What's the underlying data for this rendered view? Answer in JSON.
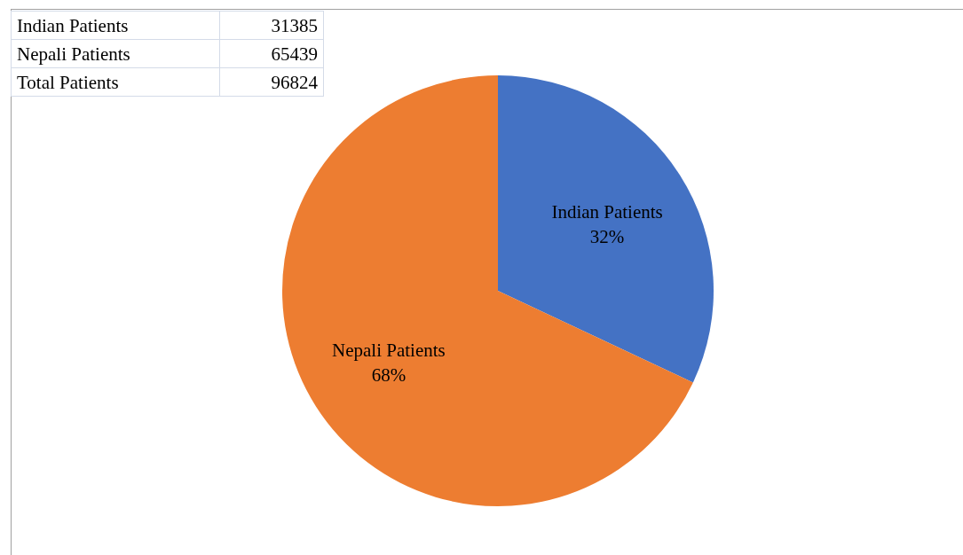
{
  "chart_data": [
    {
      "type": "other",
      "annotations": [
        "Indian Patients",
        "31385",
        "Nepali Patients",
        "65439",
        "Total Patients",
        "96824"
      ]
    },
    {
      "type": "pie",
      "categories": [
        "Indian Patients",
        "Nepali Patients"
      ],
      "values": [
        32,
        68
      ],
      "colors": [
        "#4472c4",
        "#ed7d31"
      ],
      "value_labels": [
        "32%",
        "68%"
      ]
    }
  ]
}
